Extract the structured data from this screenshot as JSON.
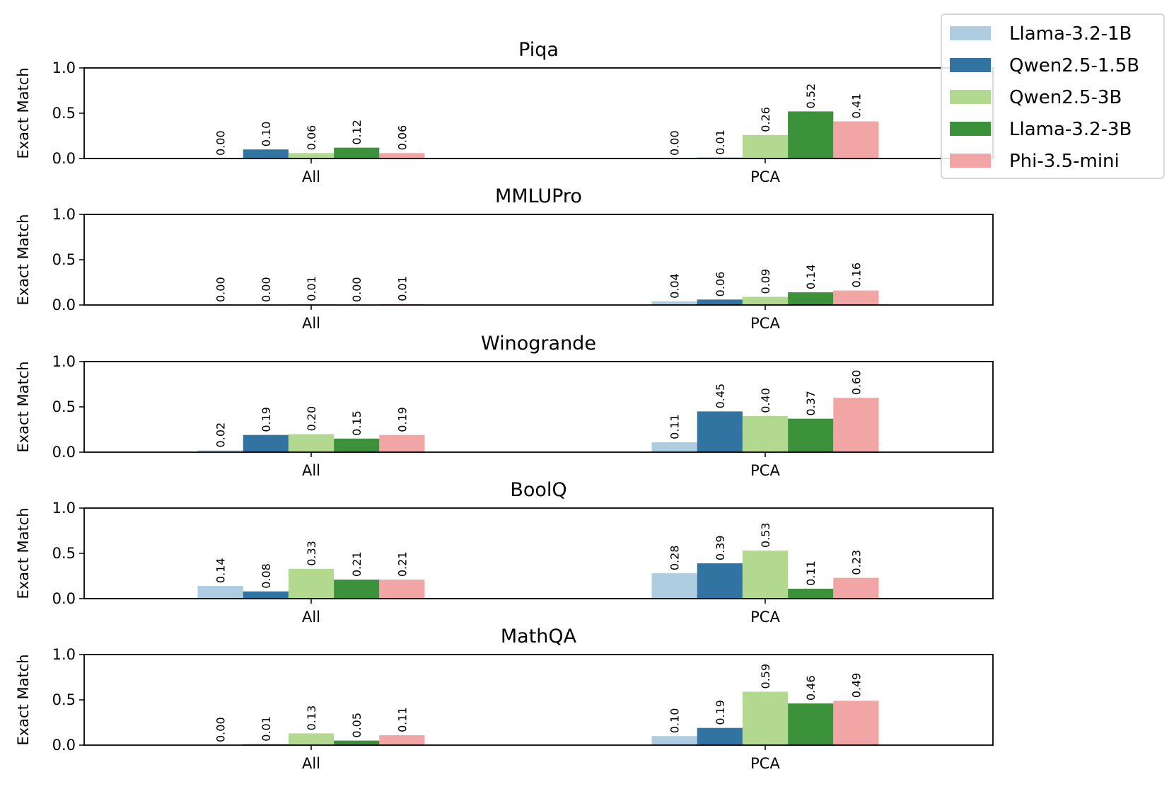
{
  "chart_data": [
    {
      "type": "bar",
      "title": "Piqa",
      "categories": [
        "All",
        "PCA"
      ],
      "ylabel": "Exact Match",
      "xlabel": "",
      "ylim": [
        0,
        1.0
      ],
      "yticks": [
        "0.0",
        "0.5",
        "1.0"
      ],
      "series": [
        {
          "name": "Llama-3.2-1B",
          "values": [
            0.0,
            0.0
          ],
          "labels": [
            "0.00",
            "0.00"
          ]
        },
        {
          "name": "Qwen2.5-1.5B",
          "values": [
            0.1,
            0.01
          ],
          "labels": [
            "0.10",
            "0.01"
          ]
        },
        {
          "name": "Qwen2.5-3B",
          "values": [
            0.06,
            0.26
          ],
          "labels": [
            "0.06",
            "0.26"
          ]
        },
        {
          "name": "Llama-3.2-3B",
          "values": [
            0.12,
            0.52
          ],
          "labels": [
            "0.12",
            "0.52"
          ]
        },
        {
          "name": "Phi-3.5-mini",
          "values": [
            0.06,
            0.41
          ],
          "labels": [
            "0.06",
            "0.41"
          ]
        }
      ]
    },
    {
      "type": "bar",
      "title": "MMLUPro",
      "categories": [
        "All",
        "PCA"
      ],
      "ylabel": "Exact Match",
      "xlabel": "",
      "ylim": [
        0,
        1.0
      ],
      "yticks": [
        "0.0",
        "0.5",
        "1.0"
      ],
      "series": [
        {
          "name": "Llama-3.2-1B",
          "values": [
            0.0,
            0.04
          ],
          "labels": [
            "0.00",
            "0.04"
          ]
        },
        {
          "name": "Qwen2.5-1.5B",
          "values": [
            0.0,
            0.06
          ],
          "labels": [
            "0.00",
            "0.06"
          ]
        },
        {
          "name": "Qwen2.5-3B",
          "values": [
            0.01,
            0.09
          ],
          "labels": [
            "0.01",
            "0.09"
          ]
        },
        {
          "name": "Llama-3.2-3B",
          "values": [
            0.0,
            0.14
          ],
          "labels": [
            "0.00",
            "0.14"
          ]
        },
        {
          "name": "Phi-3.5-mini",
          "values": [
            0.01,
            0.16
          ],
          "labels": [
            "0.01",
            "0.16"
          ]
        }
      ]
    },
    {
      "type": "bar",
      "title": "Winogrande",
      "categories": [
        "All",
        "PCA"
      ],
      "ylabel": "Exact Match",
      "xlabel": "",
      "ylim": [
        0,
        1.0
      ],
      "yticks": [
        "0.0",
        "0.5",
        "1.0"
      ],
      "series": [
        {
          "name": "Llama-3.2-1B",
          "values": [
            0.02,
            0.11
          ],
          "labels": [
            "0.02",
            "0.11"
          ]
        },
        {
          "name": "Qwen2.5-1.5B",
          "values": [
            0.19,
            0.45
          ],
          "labels": [
            "0.19",
            "0.45"
          ]
        },
        {
          "name": "Qwen2.5-3B",
          "values": [
            0.2,
            0.4
          ],
          "labels": [
            "0.20",
            "0.40"
          ]
        },
        {
          "name": "Llama-3.2-3B",
          "values": [
            0.15,
            0.37
          ],
          "labels": [
            "0.15",
            "0.37"
          ]
        },
        {
          "name": "Phi-3.5-mini",
          "values": [
            0.19,
            0.6
          ],
          "labels": [
            "0.19",
            "0.60"
          ]
        }
      ]
    },
    {
      "type": "bar",
      "title": "BoolQ",
      "categories": [
        "All",
        "PCA"
      ],
      "ylabel": "Exact Match",
      "xlabel": "",
      "ylim": [
        0,
        1.0
      ],
      "yticks": [
        "0.0",
        "0.5",
        "1.0"
      ],
      "series": [
        {
          "name": "Llama-3.2-1B",
          "values": [
            0.14,
            0.28
          ],
          "labels": [
            "0.14",
            "0.28"
          ]
        },
        {
          "name": "Qwen2.5-1.5B",
          "values": [
            0.08,
            0.39
          ],
          "labels": [
            "0.08",
            "0.39"
          ]
        },
        {
          "name": "Qwen2.5-3B",
          "values": [
            0.33,
            0.53
          ],
          "labels": [
            "0.33",
            "0.53"
          ]
        },
        {
          "name": "Llama-3.2-3B",
          "values": [
            0.21,
            0.11
          ],
          "labels": [
            "0.21",
            "0.11"
          ]
        },
        {
          "name": "Phi-3.5-mini",
          "values": [
            0.21,
            0.23
          ],
          "labels": [
            "0.21",
            "0.23"
          ]
        }
      ]
    },
    {
      "type": "bar",
      "title": "MathQA",
      "categories": [
        "All",
        "PCA"
      ],
      "ylabel": "Exact Match",
      "xlabel": "",
      "ylim": [
        0,
        1.0
      ],
      "yticks": [
        "0.0",
        "0.5",
        "1.0"
      ],
      "series": [
        {
          "name": "Llama-3.2-1B",
          "values": [
            0.0,
            0.1
          ],
          "labels": [
            "0.00",
            "0.10"
          ]
        },
        {
          "name": "Qwen2.5-1.5B",
          "values": [
            0.01,
            0.19
          ],
          "labels": [
            "0.01",
            "0.19"
          ]
        },
        {
          "name": "Qwen2.5-3B",
          "values": [
            0.13,
            0.59
          ],
          "labels": [
            "0.13",
            "0.59"
          ]
        },
        {
          "name": "Llama-3.2-3B",
          "values": [
            0.05,
            0.46
          ],
          "labels": [
            "0.05",
            "0.46"
          ]
        },
        {
          "name": "Phi-3.5-mini",
          "values": [
            0.11,
            0.49
          ],
          "labels": [
            "0.11",
            "0.49"
          ]
        }
      ]
    }
  ],
  "legend": {
    "position": "top-right",
    "entries": [
      "Llama-3.2-1B",
      "Qwen2.5-1.5B",
      "Qwen2.5-3B",
      "Llama-3.2-3B",
      "Phi-3.5-mini"
    ]
  },
  "colors": {
    "Llama-3.2-1B": "#aecde1",
    "Qwen2.5-1.5B": "#3274a1",
    "Qwen2.5-3B": "#b3d88f",
    "Llama-3.2-3B": "#3b923a",
    "Phi-3.5-mini": "#f1a6a5"
  }
}
